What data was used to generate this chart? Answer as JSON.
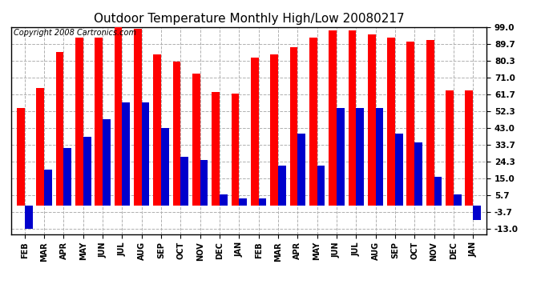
{
  "title": "Outdoor Temperature Monthly High/Low 20080217",
  "copyright": "Copyright 2008 Cartronics.com",
  "months": [
    "FEB",
    "MAR",
    "APR",
    "MAY",
    "JUN",
    "JUL",
    "AUG",
    "SEP",
    "OCT",
    "NOV",
    "DEC",
    "JAN",
    "FEB",
    "MAR",
    "APR",
    "MAY",
    "JUN",
    "JUL",
    "AUG",
    "SEP",
    "OCT",
    "NOV",
    "DEC",
    "JAN"
  ],
  "highs": [
    54,
    65,
    85,
    93,
    93,
    101,
    98,
    84,
    80,
    73,
    63,
    62,
    82,
    84,
    88,
    93,
    97,
    97,
    95,
    93,
    91,
    92,
    64,
    64
  ],
  "lows": [
    -13,
    20,
    32,
    38,
    48,
    57,
    57,
    43,
    27,
    25,
    6,
    4,
    4,
    22,
    40,
    22,
    54,
    54,
    54,
    40,
    35,
    16,
    6,
    -8
  ],
  "bar_color_high": "#ff0000",
  "bar_color_low": "#0000cc",
  "background_color": "#ffffff",
  "grid_color": "#b0b0b0",
  "ytick_values": [
    -13.0,
    -3.7,
    5.7,
    15.0,
    24.3,
    33.7,
    43.0,
    52.3,
    61.7,
    71.0,
    80.3,
    89.7,
    99.0
  ],
  "ylim_min": -16.0,
  "ylim_max": 99.0,
  "title_fontsize": 11,
  "tick_fontsize": 7.5,
  "xlabel_fontsize": 7,
  "copyright_fontsize": 7
}
